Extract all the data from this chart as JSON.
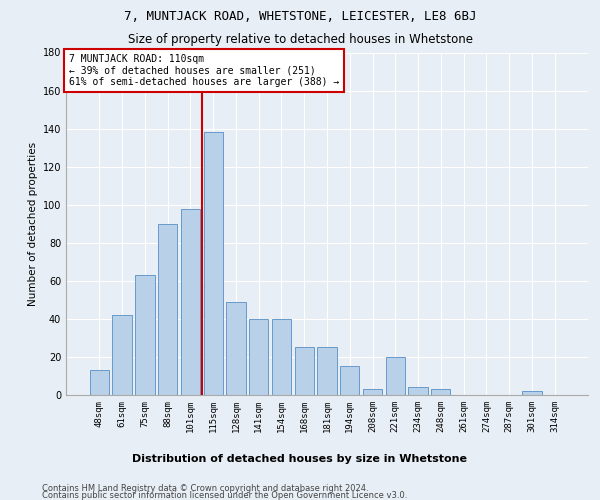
{
  "title": "7, MUNTJACK ROAD, WHETSTONE, LEICESTER, LE8 6BJ",
  "subtitle": "Size of property relative to detached houses in Whetstone",
  "xlabel_bottom": "Distribution of detached houses by size in Whetstone",
  "ylabel": "Number of detached properties",
  "categories": [
    "48sqm",
    "61sqm",
    "75sqm",
    "88sqm",
    "101sqm",
    "115sqm",
    "128sqm",
    "141sqm",
    "154sqm",
    "168sqm",
    "181sqm",
    "194sqm",
    "208sqm",
    "221sqm",
    "234sqm",
    "248sqm",
    "261sqm",
    "274sqm",
    "287sqm",
    "301sqm",
    "314sqm"
  ],
  "values": [
    13,
    42,
    63,
    90,
    98,
    138,
    49,
    40,
    40,
    25,
    25,
    15,
    3,
    20,
    4,
    3,
    0,
    0,
    0,
    2,
    0
  ],
  "bar_color": "#b8d0e8",
  "bar_edge_color": "#6699cc",
  "annotation_text_line1": "7 MUNTJACK ROAD: 110sqm",
  "annotation_text_line2": "← 39% of detached houses are smaller (251)",
  "annotation_text_line3": "61% of semi-detached houses are larger (388) →",
  "annotation_box_color": "#ffffff",
  "annotation_box_edge": "#cc0000",
  "vline_color": "#cc0000",
  "footer1": "Contains HM Land Registry data © Crown copyright and database right 2024.",
  "footer2": "Contains public sector information licensed under the Open Government Licence v3.0.",
  "background_color": "#e8eef5",
  "ylim": [
    0,
    180
  ],
  "yticks": [
    0,
    20,
    40,
    60,
    80,
    100,
    120,
    140,
    160,
    180
  ],
  "vline_x_index": 4.5
}
